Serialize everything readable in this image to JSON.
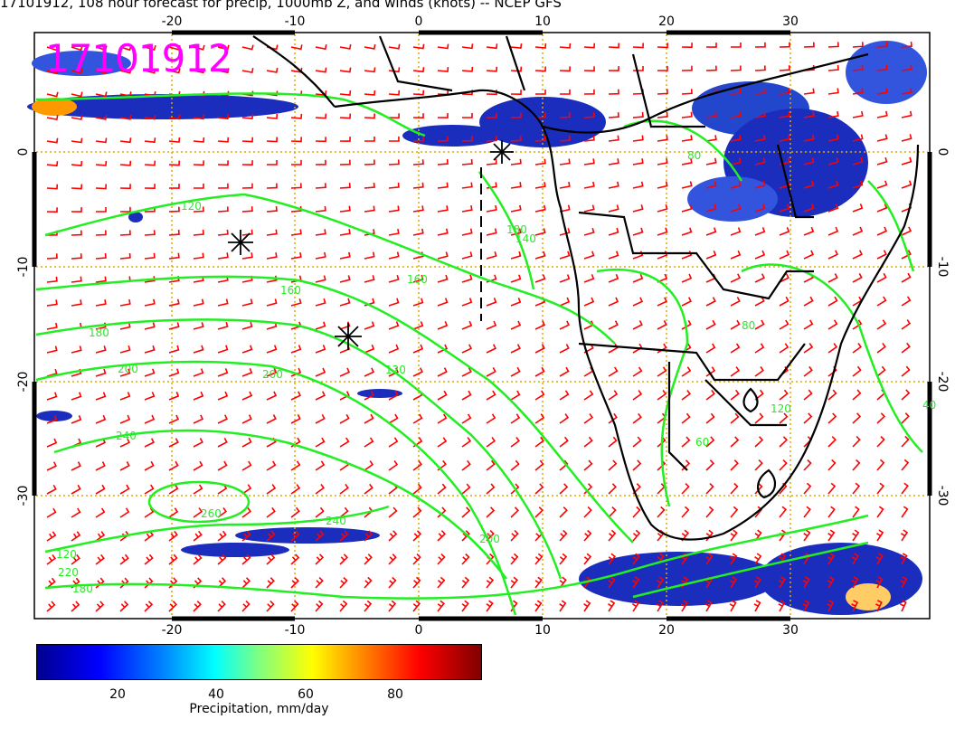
{
  "title": "17101912, 108 hour forecast for precip, 1000mb Z, and winds (knots) -- NCEP GFS",
  "stamp": "17101912",
  "axes": {
    "lon_ticks": [
      "-20",
      "-10",
      "0",
      "10",
      "20",
      "30"
    ],
    "lat_ticks": [
      "0",
      "-10",
      "-20",
      "-30"
    ]
  },
  "contour_labels": [
    "120",
    "160",
    "180",
    "200",
    "200",
    "240",
    "260",
    "240",
    "200",
    "180",
    "120",
    "80",
    "60",
    "80",
    "40",
    "120",
    "220",
    "180",
    "160",
    "140",
    "120"
  ],
  "colorbar": {
    "ticks": [
      "20",
      "40",
      "60",
      "80"
    ],
    "label": "Precipitation, mm/day"
  },
  "colors": {
    "wind_barbs": "#ff0000",
    "contours": "#22ee22",
    "coast": "#000000",
    "grid": "#ddaa00",
    "stamp": "#ff00ff"
  }
}
